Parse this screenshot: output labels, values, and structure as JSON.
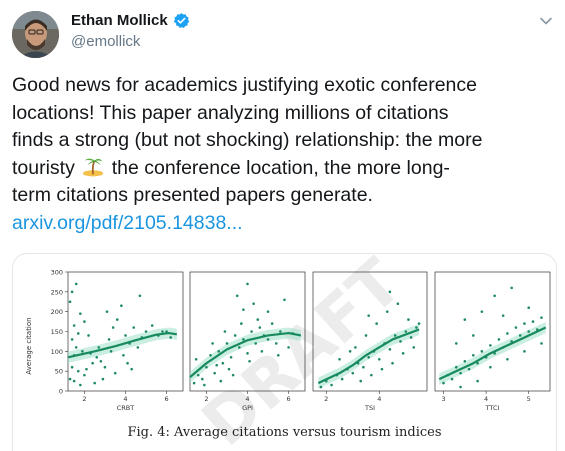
{
  "author": {
    "name": "Ethan Mollick",
    "handle": "@emollick",
    "verified": true
  },
  "tweet": {
    "line1": "Good news for academics justifying exotic conference",
    "line2": "locations! This paper analyzing millions of citations",
    "line3": "finds a strong (but not shocking) relationship: the more",
    "line4a": "touristy",
    "line4b": "the conference location, the more long-",
    "line5": "term citations presented papers generate.",
    "link": "arxiv.org/pdf/2105.14838..."
  },
  "figure": {
    "caption": "Fig. 4: Average citations versus tourism indices",
    "watermark": "DRAFT",
    "ylabel": "Average citation",
    "yticks": [
      "0",
      "50",
      "100",
      "150",
      "200",
      "250",
      "300"
    ]
  },
  "chart_data": [
    {
      "type": "scatter",
      "xlabel": "CRBT",
      "xticks": [
        "2",
        "4",
        "6"
      ],
      "xlim": [
        1.2,
        6.8
      ],
      "ylim": [
        0,
        300
      ],
      "trend": [
        [
          1.2,
          85
        ],
        [
          2.5,
          100
        ],
        [
          3.5,
          113
        ],
        [
          4.5,
          128
        ],
        [
          5.5,
          142
        ],
        [
          6.1,
          146
        ],
        [
          6.5,
          143
        ]
      ],
      "points": [
        [
          1.4,
          250
        ],
        [
          1.6,
          270
        ],
        [
          1.3,
          225
        ],
        [
          1.8,
          195
        ],
        [
          1.5,
          165
        ],
        [
          2.0,
          175
        ],
        [
          1.7,
          145
        ],
        [
          1.4,
          130
        ],
        [
          2.2,
          140
        ],
        [
          1.6,
          110
        ],
        [
          1.9,
          100
        ],
        [
          1.5,
          90
        ],
        [
          2.3,
          95
        ],
        [
          1.4,
          60
        ],
        [
          1.7,
          50
        ],
        [
          2.0,
          40
        ],
        [
          1.5,
          25
        ],
        [
          1.8,
          15
        ],
        [
          2.4,
          70
        ],
        [
          2.6,
          85
        ],
        [
          2.8,
          75
        ],
        [
          3.0,
          60
        ],
        [
          2.7,
          110
        ],
        [
          3.2,
          130
        ],
        [
          3.4,
          160
        ],
        [
          3.6,
          180
        ],
        [
          3.1,
          200
        ],
        [
          3.8,
          215
        ],
        [
          4.0,
          140
        ],
        [
          4.2,
          120
        ],
        [
          4.4,
          160
        ],
        [
          4.6,
          110
        ],
        [
          4.8,
          135
        ],
        [
          5.0,
          150
        ],
        [
          3.9,
          90
        ],
        [
          4.1,
          70
        ],
        [
          4.3,
          55
        ],
        [
          3.5,
          45
        ],
        [
          2.9,
          30
        ],
        [
          5.3,
          165
        ],
        [
          5.6,
          140
        ],
        [
          5.8,
          150
        ],
        [
          6.0,
          150
        ],
        [
          6.2,
          135
        ],
        [
          2.1,
          55
        ],
        [
          2.5,
          20
        ],
        [
          1.3,
          30
        ],
        [
          3.3,
          100
        ],
        [
          4.7,
          240
        ]
      ]
    },
    {
      "type": "scatter",
      "xlabel": "GPI",
      "xticks": [
        "2",
        "4",
        "6"
      ],
      "xlim": [
        1.2,
        6.8
      ],
      "ylim": [
        0,
        300
      ],
      "trend": [
        [
          1.2,
          35
        ],
        [
          2.0,
          70
        ],
        [
          3.0,
          105
        ],
        [
          4.0,
          128
        ],
        [
          5.0,
          140
        ],
        [
          6.0,
          146
        ],
        [
          6.6,
          140
        ]
      ],
      "points": [
        [
          1.4,
          20
        ],
        [
          1.6,
          40
        ],
        [
          1.8,
          30
        ],
        [
          2.0,
          60
        ],
        [
          1.5,
          80
        ],
        [
          2.2,
          90
        ],
        [
          2.4,
          45
        ],
        [
          2.6,
          100
        ],
        [
          2.8,
          70
        ],
        [
          3.0,
          120
        ],
        [
          3.2,
          85
        ],
        [
          3.4,
          140
        ],
        [
          3.6,
          110
        ],
        [
          3.8,
          130
        ],
        [
          4.0,
          95
        ],
        [
          4.2,
          150
        ],
        [
          4.4,
          120
        ],
        [
          4.6,
          160
        ],
        [
          4.8,
          140
        ],
        [
          5.0,
          130
        ],
        [
          5.2,
          170
        ],
        [
          5.4,
          120
        ],
        [
          5.6,
          150
        ],
        [
          3.5,
          240
        ],
        [
          4.0,
          270
        ],
        [
          3.8,
          205
        ],
        [
          4.5,
          180
        ],
        [
          5.0,
          200
        ],
        [
          2.7,
          25
        ],
        [
          3.1,
          55
        ],
        [
          3.3,
          40
        ],
        [
          4.1,
          75
        ],
        [
          4.7,
          100
        ],
        [
          5.5,
          90
        ],
        [
          6.0,
          110
        ],
        [
          6.2,
          145
        ],
        [
          2.3,
          120
        ],
        [
          2.9,
          150
        ],
        [
          3.7,
          170
        ],
        [
          4.3,
          220
        ],
        [
          5.8,
          230
        ],
        [
          1.9,
          15
        ],
        [
          2.5,
          65
        ]
      ]
    },
    {
      "type": "scatter",
      "xlabel": "TSI",
      "xticks": [
        "2",
        "4"
      ],
      "xlim": [
        1.5,
        5.8
      ],
      "ylim": [
        0,
        300
      ],
      "trend": [
        [
          1.7,
          20
        ],
        [
          2.5,
          45
        ],
        [
          3.0,
          65
        ],
        [
          3.5,
          90
        ],
        [
          4.0,
          110
        ],
        [
          4.5,
          130
        ],
        [
          5.5,
          155
        ]
      ],
      "points": [
        [
          1.8,
          10
        ],
        [
          2.0,
          25
        ],
        [
          2.2,
          15
        ],
        [
          2.4,
          40
        ],
        [
          2.6,
          30
        ],
        [
          2.8,
          55
        ],
        [
          3.0,
          45
        ],
        [
          3.2,
          70
        ],
        [
          3.4,
          60
        ],
        [
          3.6,
          85
        ],
        [
          3.8,
          100
        ],
        [
          4.0,
          80
        ],
        [
          4.2,
          120
        ],
        [
          4.4,
          105
        ],
        [
          4.6,
          140
        ],
        [
          4.8,
          125
        ],
        [
          5.0,
          150
        ],
        [
          5.2,
          135
        ],
        [
          5.4,
          160
        ],
        [
          2.5,
          80
        ],
        [
          3.1,
          110
        ],
        [
          3.5,
          140
        ],
        [
          3.9,
          170
        ],
        [
          4.3,
          200
        ],
        [
          4.7,
          220
        ],
        [
          5.1,
          180
        ],
        [
          3.3,
          25
        ],
        [
          3.7,
          40
        ],
        [
          4.1,
          55
        ],
        [
          4.5,
          70
        ],
        [
          4.9,
          95
        ],
        [
          5.3,
          110
        ],
        [
          2.9,
          100
        ],
        [
          3.6,
          190
        ],
        [
          4.4,
          250
        ],
        [
          5.5,
          170
        ]
      ]
    },
    {
      "type": "scatter",
      "xlabel": "TTCI",
      "xticks": [
        "3",
        "4",
        "5"
      ],
      "xlim": [
        2.8,
        5.5
      ],
      "ylim": [
        0,
        300
      ],
      "trend": [
        [
          2.9,
          30
        ],
        [
          3.3,
          50
        ],
        [
          3.7,
          70
        ],
        [
          4.1,
          95
        ],
        [
          4.5,
          115
        ],
        [
          4.9,
          135
        ],
        [
          5.4,
          160
        ]
      ],
      "points": [
        [
          3.0,
          20
        ],
        [
          3.1,
          40
        ],
        [
          3.2,
          30
        ],
        [
          3.3,
          60
        ],
        [
          3.4,
          45
        ],
        [
          3.5,
          75
        ],
        [
          3.6,
          55
        ],
        [
          3.7,
          90
        ],
        [
          3.8,
          70
        ],
        [
          3.9,
          100
        ],
        [
          4.0,
          85
        ],
        [
          4.1,
          115
        ],
        [
          4.2,
          95
        ],
        [
          4.3,
          130
        ],
        [
          4.4,
          110
        ],
        [
          4.5,
          145
        ],
        [
          4.6,
          125
        ],
        [
          4.7,
          160
        ],
        [
          4.8,
          140
        ],
        [
          4.9,
          170
        ],
        [
          5.0,
          150
        ],
        [
          5.1,
          175
        ],
        [
          5.2,
          155
        ],
        [
          5.3,
          185
        ],
        [
          3.5,
          180
        ],
        [
          3.9,
          200
        ],
        [
          4.2,
          240
        ],
        [
          4.6,
          260
        ],
        [
          3.3,
          120
        ],
        [
          3.7,
          140
        ],
        [
          4.1,
          60
        ],
        [
          4.5,
          80
        ],
        [
          4.9,
          100
        ],
        [
          5.3,
          120
        ],
        [
          3.4,
          10
        ],
        [
          3.8,
          25
        ],
        [
          4.4,
          190
        ],
        [
          5.0,
          210
        ]
      ]
    }
  ],
  "colors": {
    "accent": "#1da1f2",
    "link": "#1b95e0",
    "point": "#1f8a66",
    "line": "#178a5e",
    "band": "#9fe0c8"
  }
}
